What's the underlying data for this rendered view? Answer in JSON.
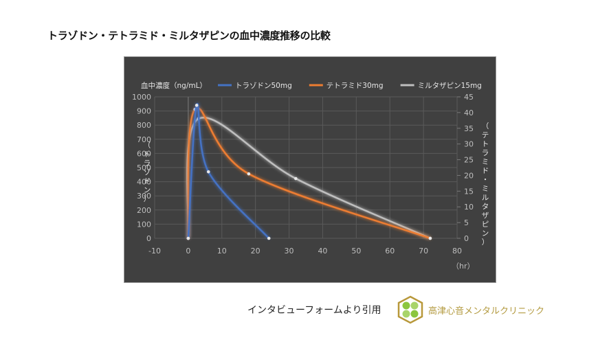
{
  "page": {
    "title": "トラゾドン・テトラミド・ミルタザピンの血中濃度推移の比較",
    "footer_text": "インタビューフォームより引用",
    "clinic_name": "高津心音メンタルクリニック",
    "logo_icon": "clover-hexagon-logo-icon"
  },
  "chart_data": {
    "type": "line",
    "title": "",
    "legend_title": "血中濃度（ng/mL）",
    "xlabel": "（hr）",
    "ylabel_left": "（トラゾドン）",
    "ylabel_right": "（テトラミド・ミルタザピン）",
    "x_ticks": [
      -10,
      0,
      10,
      20,
      30,
      40,
      50,
      60,
      70,
      80
    ],
    "y_left_ticks": [
      0,
      100,
      200,
      300,
      400,
      500,
      600,
      700,
      800,
      900,
      1000
    ],
    "y_right_ticks": [
      0,
      5,
      10,
      15,
      20,
      25,
      30,
      35,
      40,
      45
    ],
    "xlim": [
      -10,
      80
    ],
    "ylim_left": [
      0,
      1000
    ],
    "ylim_right": [
      0,
      45
    ],
    "grid": true,
    "legend_position": "top",
    "series": [
      {
        "name": "トラゾドン50mg",
        "axis": "left",
        "color": "#4472C4",
        "points": [
          [
            0,
            0
          ],
          [
            2.5,
            940
          ],
          [
            6,
            470
          ],
          [
            24,
            0
          ]
        ]
      },
      {
        "name": "テトラミド30mg",
        "axis": "right",
        "color": "#ED7D31",
        "points": [
          [
            0,
            0
          ],
          [
            2,
            41
          ],
          [
            18,
            20.5
          ],
          [
            72,
            0
          ]
        ]
      },
      {
        "name": "ミルタザピン15mg",
        "axis": "right",
        "color": "#BFBFBF",
        "points": [
          [
            0,
            0
          ],
          [
            3,
            38
          ],
          [
            32,
            19
          ],
          [
            72,
            0
          ]
        ]
      }
    ]
  }
}
